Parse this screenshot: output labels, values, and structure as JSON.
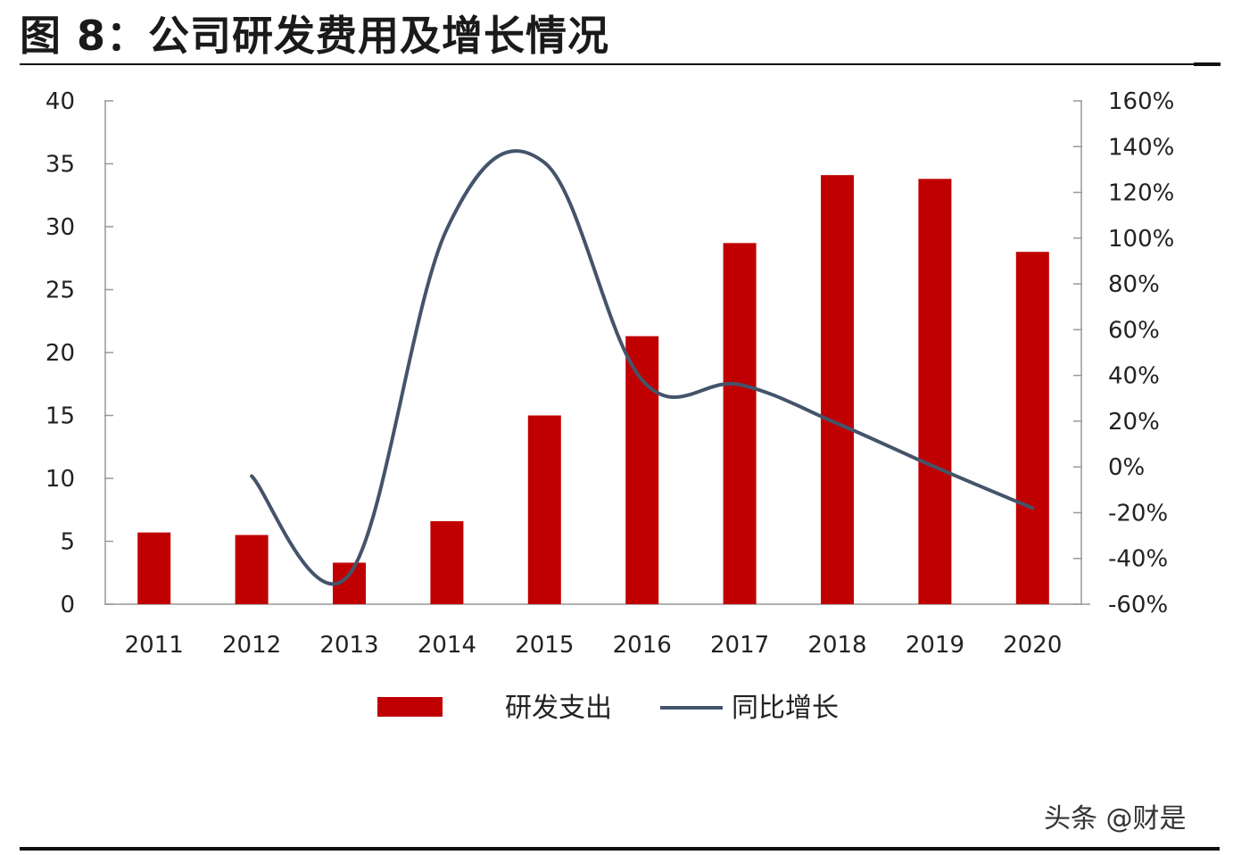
{
  "title": "图 8：公司研发费用及增长情况",
  "watermark": "头条 @财是",
  "colors": {
    "bar": "#c00000",
    "line": "#44546a",
    "axis": "#999999"
  },
  "chart_data": {
    "type": "bar",
    "categories": [
      "2011",
      "2012",
      "2013",
      "2014",
      "2015",
      "2016",
      "2017",
      "2018",
      "2019",
      "2020"
    ],
    "series": [
      {
        "name": "研发支出",
        "type": "bar",
        "axis": "left",
        "values": [
          5.7,
          5.5,
          3.3,
          6.6,
          15.0,
          21.3,
          28.7,
          34.1,
          33.8,
          28.0
        ]
      },
      {
        "name": "同比增长",
        "type": "line",
        "axis": "right",
        "smooth": true,
        "values": [
          null,
          -4,
          -47,
          104,
          133,
          38,
          36,
          19,
          0,
          -18
        ]
      }
    ],
    "ylim_left": [
      0,
      40
    ],
    "ylim_right": [
      -60,
      160
    ],
    "yticks_left": [
      "0",
      "5",
      "10",
      "15",
      "20",
      "25",
      "30",
      "35",
      "40"
    ],
    "yticks_right": [
      "-60%",
      "-40%",
      "-20%",
      "0%",
      "20%",
      "40%",
      "60%",
      "80%",
      "100%",
      "120%",
      "140%",
      "160%"
    ],
    "legend": "bottom",
    "grid": false
  }
}
